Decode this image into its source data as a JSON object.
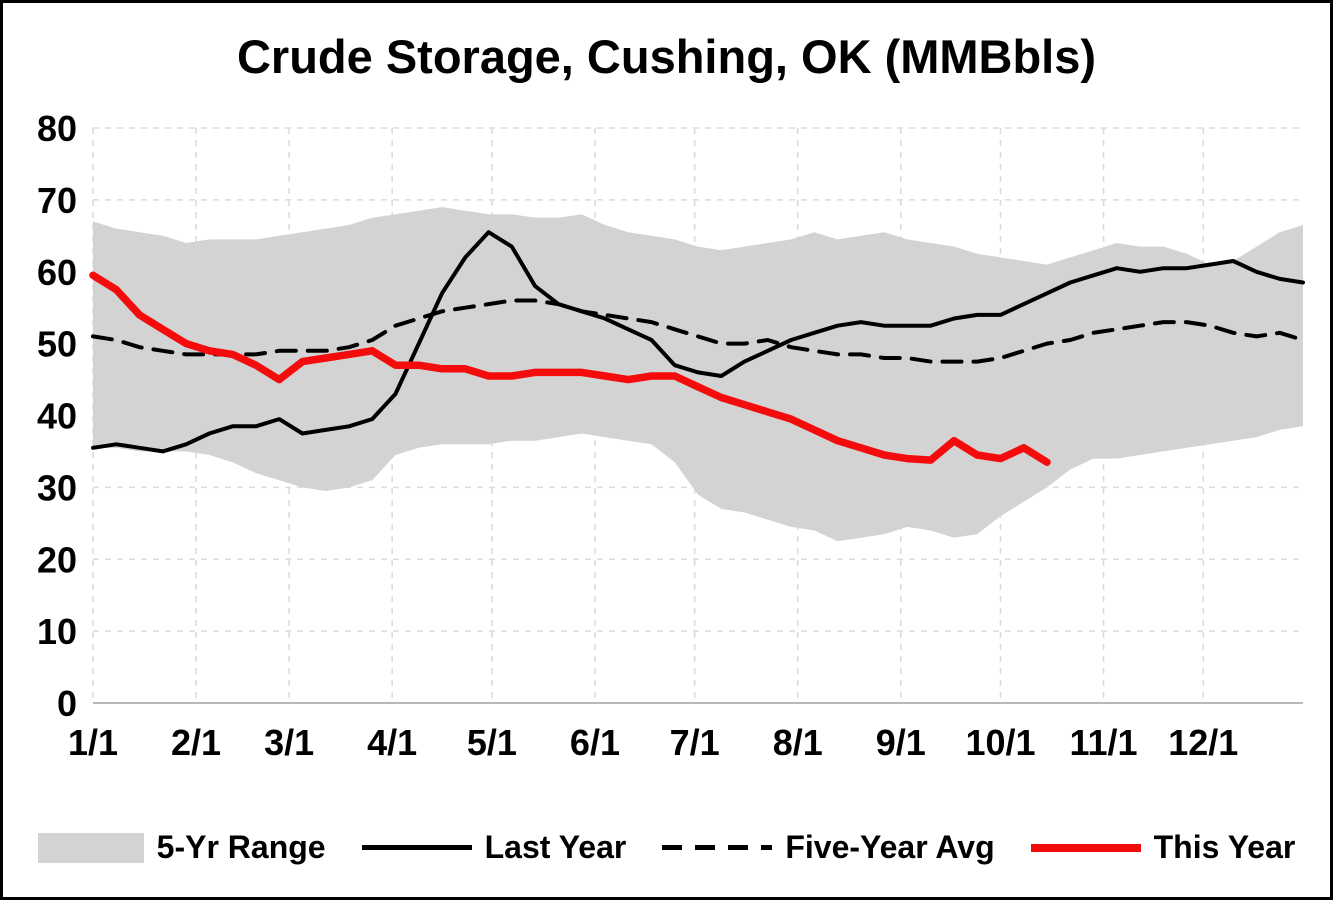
{
  "legend": {
    "items": [
      {
        "label": "5-Yr Range"
      },
      {
        "label": "Last Year"
      },
      {
        "label": "Five-Year Avg"
      },
      {
        "label": "This Year"
      }
    ]
  },
  "chart_data": {
    "type": "line",
    "title": "Crude Storage, Cushing, OK (MMBbls)",
    "xlabel": "",
    "ylabel": "",
    "ylim": [
      0,
      80
    ],
    "y_ticks": [
      0,
      10,
      20,
      30,
      40,
      50,
      60,
      70,
      80
    ],
    "x_span_days": 364,
    "x_step_days": 7,
    "x_ticks": [
      {
        "label": "1/1",
        "day": 0
      },
      {
        "label": "2/1",
        "day": 31
      },
      {
        "label": "3/1",
        "day": 59
      },
      {
        "label": "4/1",
        "day": 90
      },
      {
        "label": "5/1",
        "day": 120
      },
      {
        "label": "6/1",
        "day": 151
      },
      {
        "label": "7/1",
        "day": 181
      },
      {
        "label": "8/1",
        "day": 212
      },
      {
        "label": "9/1",
        "day": 243
      },
      {
        "label": "10/1",
        "day": 273
      },
      {
        "label": "11/1",
        "day": 304
      },
      {
        "label": "12/1",
        "day": 334
      }
    ],
    "grid": "dashed, both directions",
    "legend_position": "bottom",
    "colors": {
      "range_fill": "#d3d3d3",
      "last_year": "#000000",
      "five_year_avg": "#000000",
      "this_year": "#f40b0b",
      "grid": "#dcdcdc",
      "axis": "#b7b7b7",
      "text": "#000000"
    },
    "band": {
      "name": "5-Yr Range",
      "upper": [
        67,
        66,
        65.5,
        65,
        64,
        64.5,
        64.5,
        64.5,
        65,
        65.5,
        66,
        66.5,
        67.5,
        68,
        68.5,
        69,
        68.5,
        68,
        68,
        67.5,
        67.5,
        68,
        66.5,
        65.5,
        65,
        64.5,
        63.5,
        63,
        63.5,
        64,
        64.5,
        65.5,
        64.5,
        65,
        65.5,
        64.5,
        64,
        63.5,
        62.5,
        62,
        61.5,
        61,
        62,
        63,
        64,
        63.5,
        63.5,
        62.5,
        61,
        61.5,
        63.5,
        65.5,
        66.5
      ],
      "lower": [
        35.5,
        35.5,
        35,
        35,
        35,
        34.5,
        33.5,
        32,
        31,
        30,
        29.5,
        30,
        31,
        34.5,
        35.5,
        36,
        36,
        36,
        36.5,
        36.5,
        37,
        37.5,
        37,
        36.5,
        36,
        33.5,
        29,
        27,
        26.5,
        25.5,
        24.5,
        24,
        22.5,
        23,
        23.5,
        24.5,
        24,
        23,
        23.5,
        26,
        28,
        30,
        32.5,
        34,
        34,
        34.5,
        35,
        35.5,
        36,
        36.5,
        37,
        38,
        38.5
      ]
    },
    "series": [
      {
        "id": "last-year",
        "name": "Last Year",
        "style": "solid",
        "color": "#000000",
        "width": 4,
        "values": [
          35.5,
          36,
          35.5,
          35,
          36,
          37.5,
          38.5,
          38.5,
          39.5,
          37.5,
          38,
          38.5,
          39.5,
          43,
          50,
          57,
          62,
          65.5,
          63.5,
          58,
          55.5,
          54.5,
          53.5,
          52,
          50.5,
          47,
          46,
          45.5,
          47.5,
          49,
          50.5,
          51.5,
          52.5,
          53,
          52.5,
          52.5,
          52.5,
          53.5,
          54,
          54,
          55.5,
          57,
          58.5,
          59.5,
          60.5,
          60,
          60.5,
          60.5,
          61,
          61.5,
          60,
          59,
          58.5
        ]
      },
      {
        "id": "five-year-avg",
        "name": "Five-Year Avg",
        "style": "dashed",
        "dash": "19 12",
        "color": "#000000",
        "width": 4,
        "values": [
          51,
          50.5,
          49.5,
          49,
          48.5,
          48.5,
          48.5,
          48.5,
          49,
          49,
          49,
          49.5,
          50.5,
          52.5,
          53.5,
          54.5,
          55,
          55.5,
          56,
          56,
          55.5,
          54.5,
          54,
          53.5,
          53,
          52,
          51,
          50,
          50,
          50.5,
          49.5,
          49,
          48.5,
          48.5,
          48,
          48,
          47.5,
          47.5,
          47.5,
          48,
          49,
          50,
          50.5,
          51.5,
          52,
          52.5,
          53,
          53,
          52.5,
          51.5,
          51,
          51.5,
          50.5
        ]
      },
      {
        "id": "this-year",
        "name": "This Year",
        "style": "solid",
        "color": "#f40b0b",
        "width": 7.5,
        "values": [
          59.5,
          57.5,
          54,
          52,
          50,
          49,
          48.5,
          47,
          45,
          47.5,
          48,
          48.5,
          49,
          47,
          47,
          46.5,
          46.5,
          45.5,
          45.5,
          46,
          46,
          46,
          45.5,
          45,
          45.5,
          45.5,
          44,
          42.5,
          41.5,
          40.5,
          39.5,
          38,
          36.5,
          35.5,
          34.5,
          34,
          33.8,
          36.5,
          34.5,
          34,
          35.5,
          33.5
        ]
      }
    ]
  }
}
